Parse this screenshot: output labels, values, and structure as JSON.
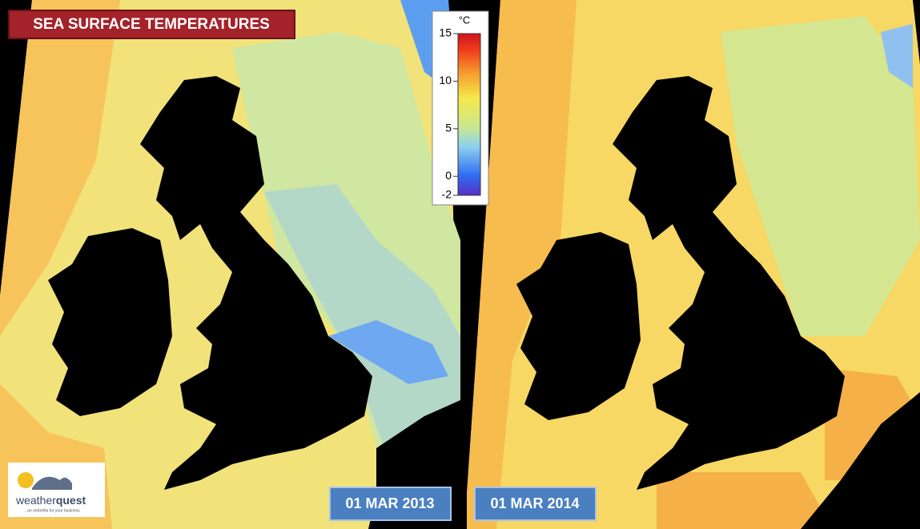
{
  "title": "SEA SURFACE TEMPERATURES",
  "colorbar": {
    "unit": "°C",
    "range": [
      -2,
      15
    ],
    "ticks": [
      15,
      10,
      5,
      0,
      -2
    ]
  },
  "panels": [
    {
      "date": "01 MAR 2013"
    },
    {
      "date": "01 MAR 2014"
    }
  ],
  "logo": {
    "brand": [
      "weather",
      "quest"
    ],
    "tagline": "...an umbrella for your business"
  }
}
